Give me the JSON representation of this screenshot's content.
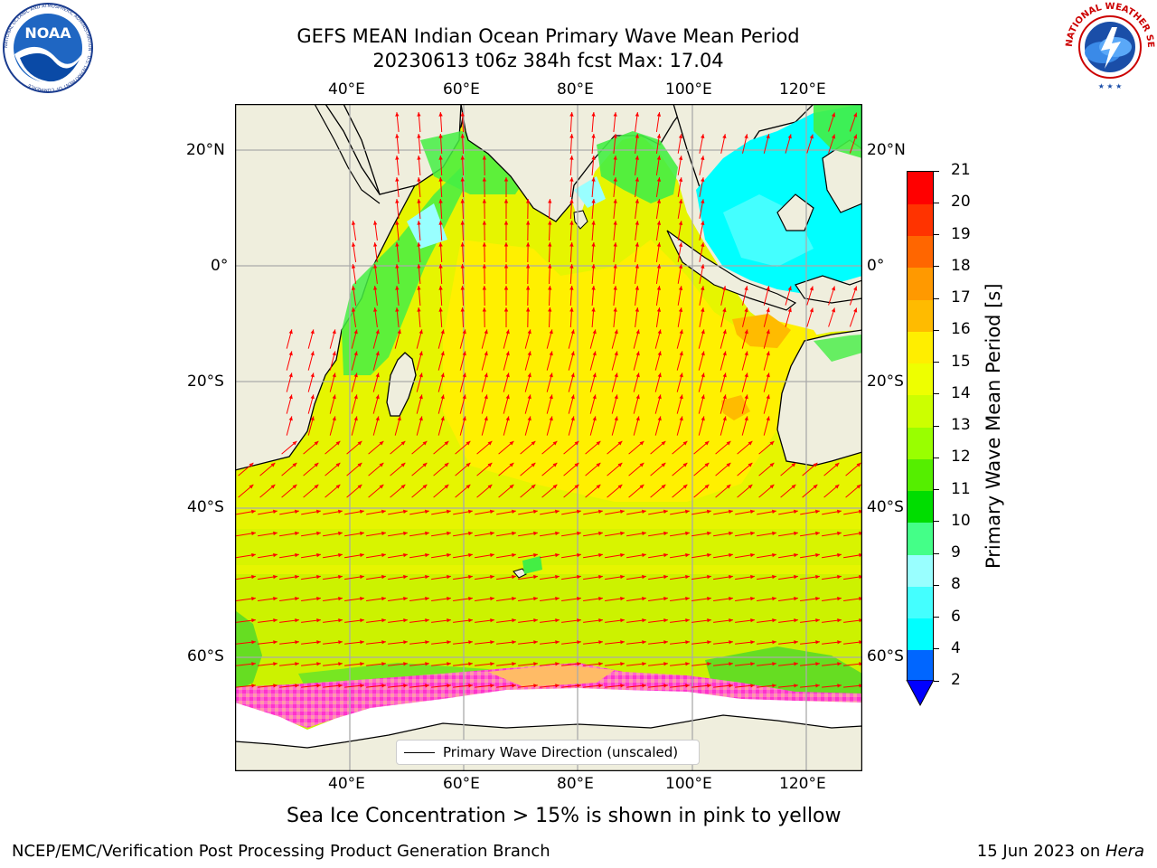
{
  "header": {
    "title_line1": "GEFS MEAN Indian Ocean Primary Wave Mean Period",
    "title_line2": "20230613 t06z 384h fcst   Max: 17.04"
  },
  "logos": {
    "left": "NOAA",
    "left_ring": "NATIONAL OCEANIC AND ATMOSPHERIC ADMINISTRATION · U.S. DEPARTMENT OF COMMERCE",
    "right_ring": "NATIONAL WEATHER SERVICE"
  },
  "map": {
    "lon_ticks": [
      "40°E",
      "60°E",
      "80°E",
      "100°E",
      "120°E"
    ],
    "lat_ticks": [
      "20°N",
      "0°",
      "20°S",
      "40°S",
      "60°S"
    ],
    "legend_label": "Primary Wave Direction (unscaled)"
  },
  "colorbar": {
    "label": "Primary Wave Mean Period [s]",
    "ticks": [
      "2",
      "4",
      "6",
      "8",
      "9",
      "10",
      "11",
      "12",
      "13",
      "14",
      "15",
      "16",
      "17",
      "18",
      "19",
      "20",
      "21"
    ],
    "colors": [
      "#0066ff",
      "#00ccff",
      "#00ffff",
      "#44ffff",
      "#99ffff",
      "#44ff88",
      "#00dd00",
      "#55ee00",
      "#99ff00",
      "#ccff00",
      "#eeff00",
      "#ffee00",
      "#ffbb00",
      "#ff9900",
      "#ff6600",
      "#ff3300",
      "#ff0000"
    ],
    "extend_color": "#0000ff"
  },
  "caption": "Sea Ice Concentration > 15% is shown in pink to yellow",
  "footer": {
    "left": "NCEP/EMC/Verification Post Processing Product Generation Branch",
    "right_prefix": "15 Jun 2023 on ",
    "right_italic": "Hera"
  }
}
